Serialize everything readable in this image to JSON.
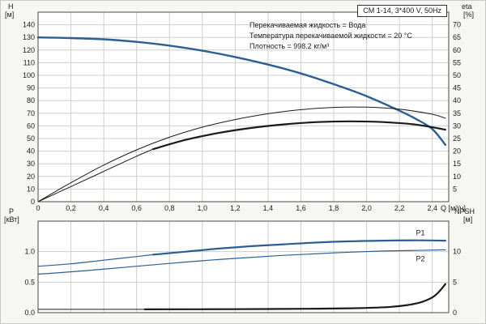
{
  "title_box": {
    "label": "CM 1-14, 3*400 V, 50Hz"
  },
  "info_lines": [
    "Перекачиваемая жидкость = Вода",
    "Температура перекачиваемой жидкости = 20 °C",
    "Плотность = 998.2 кг/м³"
  ],
  "colors": {
    "curve_blue": "#2b5f94",
    "curve_black": "#1a1a1a",
    "grid": "#cdcdcd",
    "frame": "#4a4a4a",
    "plot_bg": "#ffffff",
    "page_bg": "#f6f6f3",
    "text": "#1a1a1a"
  },
  "chart_data": [
    {
      "type": "line",
      "name": "head-and-efficiency",
      "x_axis": {
        "label": "Q [м³/ч]",
        "min": 0,
        "max": 2.5,
        "tick_values": [
          0,
          0.2,
          0.4,
          0.6,
          0.8,
          1.0,
          1.2,
          1.4,
          1.6,
          1.8,
          2.0,
          2.2,
          2.4
        ],
        "tick_labels": [
          "0",
          "0,2",
          "0,4",
          "0,6",
          "0,8",
          "1,0",
          "1,2",
          "1,4",
          "1,6",
          "1,8",
          "2,0",
          "2,2",
          "2,4"
        ]
      },
      "y_left": {
        "label": "H",
        "unit": "[м]",
        "min": 0,
        "max": 150,
        "tick_values": [
          0,
          10,
          20,
          30,
          40,
          50,
          60,
          70,
          80,
          90,
          100,
          110,
          120,
          130,
          140
        ]
      },
      "y_right": {
        "label": "eta",
        "unit": "[%]",
        "min": 0,
        "max": 75,
        "tick_values": [
          5,
          10,
          15,
          20,
          25,
          30,
          35,
          40,
          45,
          50,
          55,
          60,
          65,
          70
        ]
      },
      "series": [
        {
          "name": "H-Q curve",
          "axis": "left",
          "color": "#2b5f94",
          "width": 2.4,
          "points": [
            [
              0,
              130
            ],
            [
              0.2,
              129.5
            ],
            [
              0.4,
              128.5
            ],
            [
              0.6,
              126.5
            ],
            [
              0.8,
              123.5
            ],
            [
              1.0,
              119.5
            ],
            [
              1.2,
              114.5
            ],
            [
              1.4,
              108.5
            ],
            [
              1.6,
              101.5
            ],
            [
              1.8,
              93
            ],
            [
              2.0,
              83.5
            ],
            [
              2.2,
              72
            ],
            [
              2.3,
              65.5
            ],
            [
              2.4,
              57.5
            ],
            [
              2.48,
              45
            ]
          ]
        },
        {
          "name": "eta total thin",
          "axis": "right",
          "color": "#1a1a1a",
          "width": 1,
          "points": [
            [
              0,
              0
            ],
            [
              0.2,
              7.5
            ],
            [
              0.4,
              14.5
            ],
            [
              0.6,
              20.5
            ],
            [
              0.8,
              25.5
            ],
            [
              1.0,
              29.5
            ],
            [
              1.2,
              32.5
            ],
            [
              1.4,
              34.8
            ],
            [
              1.6,
              36.4
            ],
            [
              1.8,
              37.3
            ],
            [
              2.0,
              37.4
            ],
            [
              2.2,
              36.6
            ],
            [
              2.4,
              34.6
            ],
            [
              2.48,
              33
            ]
          ]
        },
        {
          "name": "eta pump lead thin",
          "axis": "right",
          "color": "#1a1a1a",
          "width": 1,
          "points": [
            [
              0,
              0
            ],
            [
              0.2,
              6
            ],
            [
              0.4,
              12
            ],
            [
              0.6,
              18
            ],
            [
              0.7,
              20.8
            ]
          ]
        },
        {
          "name": "eta pump thick",
          "axis": "right",
          "color": "#1a1a1a",
          "width": 2.2,
          "points": [
            [
              0.7,
              20.8
            ],
            [
              0.9,
              24.5
            ],
            [
              1.1,
              27.2
            ],
            [
              1.3,
              29.2
            ],
            [
              1.5,
              30.6
            ],
            [
              1.7,
              31.5
            ],
            [
              1.9,
              31.8
            ],
            [
              2.1,
              31.5
            ],
            [
              2.3,
              30.5
            ],
            [
              2.48,
              28.5
            ]
          ]
        }
      ]
    },
    {
      "type": "line",
      "name": "power-and-npsh",
      "x_axis": {
        "label": "",
        "min": 0,
        "max": 2.5,
        "tick_values": [
          0,
          0.2,
          0.4,
          0.6,
          0.8,
          1.0,
          1.2,
          1.4,
          1.6,
          1.8,
          2.0,
          2.2,
          2.4
        ],
        "tick_labels": []
      },
      "y_left": {
        "label": "P",
        "unit": "[кВт]",
        "min": 0,
        "max": 1.5,
        "tick_values": [
          0,
          0.5,
          1.0
        ],
        "tick_labels": [
          "0.0",
          "0.5",
          "1.0"
        ]
      },
      "y_right": {
        "label": "NPSH",
        "unit": "[м]",
        "min": 0,
        "max": 15,
        "tick_values": [
          0,
          5,
          10
        ],
        "tick_labels": [
          "0",
          "5",
          "10"
        ]
      },
      "series": [
        {
          "name": "P1 lead thin",
          "axis": "left",
          "color": "#2b5f94",
          "width": 1.2,
          "points": [
            [
              0,
              0.76
            ],
            [
              0.2,
              0.8
            ],
            [
              0.4,
              0.86
            ],
            [
              0.6,
              0.92
            ],
            [
              0.7,
              0.95
            ]
          ]
        },
        {
          "name": "P1 curve",
          "axis": "left",
          "color": "#2b5f94",
          "width": 2.2,
          "label": "P1",
          "label_at": [
            2.3,
            1.27
          ],
          "points": [
            [
              0.7,
              0.95
            ],
            [
              0.9,
              1.0
            ],
            [
              1.1,
              1.05
            ],
            [
              1.3,
              1.09
            ],
            [
              1.5,
              1.12
            ],
            [
              1.7,
              1.15
            ],
            [
              1.9,
              1.17
            ],
            [
              2.1,
              1.18
            ],
            [
              2.3,
              1.185
            ],
            [
              2.48,
              1.18
            ]
          ]
        },
        {
          "name": "P2 curve",
          "axis": "left",
          "color": "#2b5f94",
          "width": 1.2,
          "label": "P2",
          "label_at": [
            2.3,
            0.84
          ],
          "points": [
            [
              0,
              0.63
            ],
            [
              0.3,
              0.69
            ],
            [
              0.6,
              0.76
            ],
            [
              0.9,
              0.83
            ],
            [
              1.2,
              0.89
            ],
            [
              1.5,
              0.94
            ],
            [
              1.8,
              0.98
            ],
            [
              2.1,
              1.01
            ],
            [
              2.3,
              1.02
            ],
            [
              2.48,
              1.03
            ]
          ]
        },
        {
          "name": "NPSH lead thin",
          "axis": "right",
          "color": "#1a1a1a",
          "width": 1,
          "points": [
            [
              0,
              0.55
            ],
            [
              0.3,
              0.55
            ],
            [
              0.65,
              0.55
            ]
          ]
        },
        {
          "name": "NPSH curve",
          "axis": "right",
          "color": "#1a1a1a",
          "width": 2.2,
          "points": [
            [
              0.65,
              0.55
            ],
            [
              1.0,
              0.56
            ],
            [
              1.4,
              0.6
            ],
            [
              1.7,
              0.65
            ],
            [
              1.9,
              0.72
            ],
            [
              2.05,
              0.82
            ],
            [
              2.15,
              0.95
            ],
            [
              2.25,
              1.25
            ],
            [
              2.33,
              1.7
            ],
            [
              2.4,
              2.5
            ],
            [
              2.44,
              3.4
            ],
            [
              2.48,
              4.7
            ]
          ]
        }
      ]
    }
  ]
}
